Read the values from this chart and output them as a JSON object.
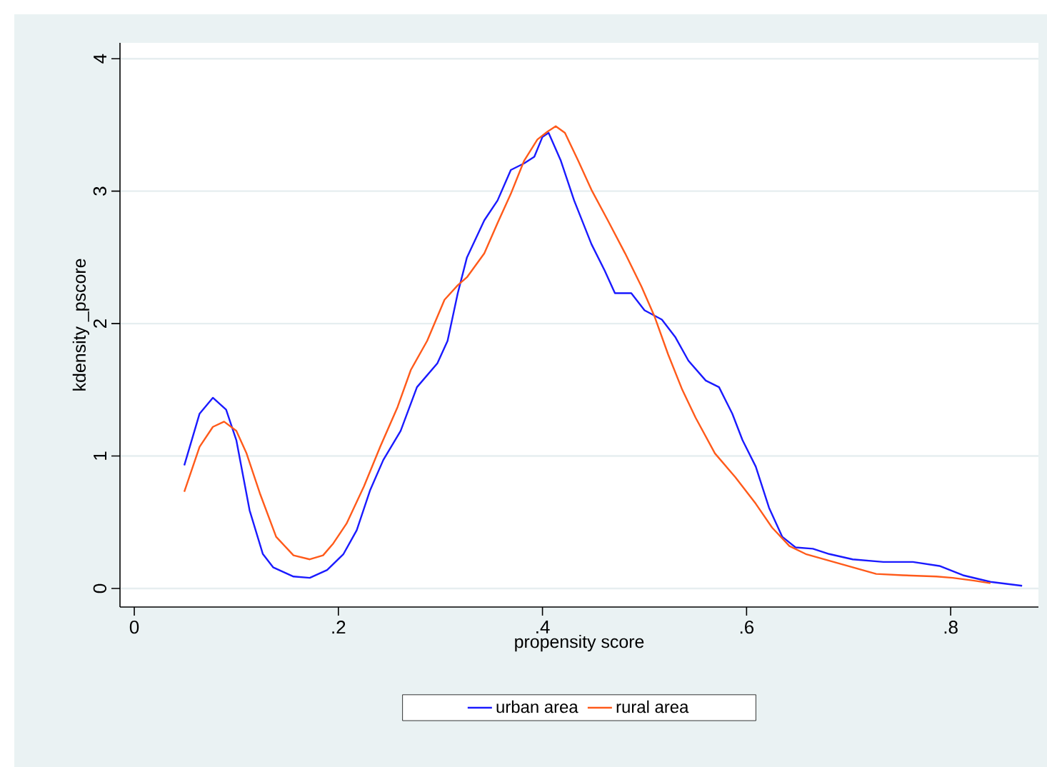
{
  "chart_data": {
    "type": "line",
    "xlabel": "propensity score",
    "ylabel": "kdensity _pscore",
    "xlim": [
      -0.014,
      0.886
    ],
    "ylim": [
      -0.14,
      4.12
    ],
    "xticks": [
      0,
      {
        "value": 0.2,
        "label": ".2"
      },
      {
        "value": 0.4,
        "label": ".4"
      },
      {
        "value": 0.6,
        "label": ".6"
      },
      {
        "value": 0.8,
        "label": ".8"
      }
    ],
    "yticks": [
      0,
      1,
      2,
      3,
      4
    ],
    "grid": "y",
    "legend": "bottom",
    "series": [
      {
        "name": "urban area",
        "color": "#1a1aff",
        "x": [
          0.049,
          0.064,
          0.077,
          0.09,
          0.1,
          0.113,
          0.126,
          0.136,
          0.156,
          0.172,
          0.189,
          0.205,
          0.218,
          0.231,
          0.244,
          0.261,
          0.277,
          0.297,
          0.307,
          0.317,
          0.326,
          0.343,
          0.356,
          0.369,
          0.382,
          0.392,
          0.4,
          0.406,
          0.418,
          0.431,
          0.448,
          0.461,
          0.471,
          0.487,
          0.5,
          0.517,
          0.53,
          0.543,
          0.56,
          0.573,
          0.586,
          0.596,
          0.609,
          0.622,
          0.635,
          0.648,
          0.665,
          0.681,
          0.704,
          0.734,
          0.763,
          0.789,
          0.812,
          0.839,
          0.87
        ],
        "values": [
          0.93,
          1.32,
          1.44,
          1.35,
          1.12,
          0.59,
          0.26,
          0.16,
          0.09,
          0.08,
          0.14,
          0.26,
          0.44,
          0.74,
          0.97,
          1.19,
          1.52,
          1.7,
          1.87,
          2.23,
          2.5,
          2.78,
          2.93,
          3.16,
          3.21,
          3.26,
          3.41,
          3.44,
          3.23,
          2.93,
          2.6,
          2.4,
          2.23,
          2.23,
          2.1,
          2.03,
          1.9,
          1.72,
          1.57,
          1.52,
          1.32,
          1.12,
          0.92,
          0.61,
          0.39,
          0.31,
          0.3,
          0.26,
          0.22,
          0.2,
          0.2,
          0.17,
          0.1,
          0.05,
          0.02
        ]
      },
      {
        "name": "rural area",
        "color": "#ff5a1a",
        "x": [
          0.049,
          0.064,
          0.077,
          0.088,
          0.1,
          0.11,
          0.123,
          0.139,
          0.156,
          0.172,
          0.185,
          0.195,
          0.208,
          0.225,
          0.241,
          0.258,
          0.271,
          0.287,
          0.304,
          0.317,
          0.326,
          0.343,
          0.356,
          0.369,
          0.382,
          0.395,
          0.405,
          0.413,
          0.422,
          0.435,
          0.448,
          0.464,
          0.481,
          0.497,
          0.51,
          0.523,
          0.537,
          0.55,
          0.569,
          0.589,
          0.609,
          0.625,
          0.642,
          0.658,
          0.681,
          0.704,
          0.727,
          0.753,
          0.786,
          0.802,
          0.822,
          0.839
        ],
        "values": [
          0.73,
          1.07,
          1.22,
          1.26,
          1.19,
          1.02,
          0.72,
          0.39,
          0.25,
          0.22,
          0.25,
          0.34,
          0.49,
          0.77,
          1.07,
          1.37,
          1.65,
          1.87,
          2.18,
          2.29,
          2.35,
          2.53,
          2.76,
          2.98,
          3.23,
          3.39,
          3.45,
          3.49,
          3.44,
          3.23,
          3.01,
          2.78,
          2.53,
          2.28,
          2.05,
          1.77,
          1.5,
          1.29,
          1.02,
          0.84,
          0.64,
          0.46,
          0.32,
          0.26,
          0.21,
          0.16,
          0.11,
          0.1,
          0.09,
          0.08,
          0.06,
          0.04
        ]
      }
    ]
  }
}
